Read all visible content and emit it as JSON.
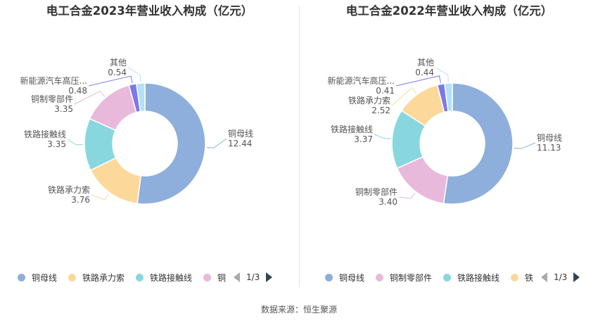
{
  "palette": {
    "铜母线": "#8eafdc",
    "铁路承力索": "#fcd99a",
    "铁路接触线": "#88d7df",
    "铜制零部件": "#e8b9da",
    "新能源汽车高压...": "#7b79e8",
    "其他": "#b3e1f7"
  },
  "chart_data": [
    {
      "type": "pie",
      "title": "电工合金2023年营业收入构成（亿元）",
      "categories": [
        "铜母线",
        "铁路承力索",
        "铁路接触线",
        "铜制零部件",
        "新能源汽车高压...",
        "其他"
      ],
      "values": [
        12.44,
        3.76,
        3.35,
        3.35,
        0.48,
        0.54
      ],
      "value_labels": [
        "12.44",
        "3.76",
        "3.35",
        "3.35",
        "0.48",
        "0.54"
      ],
      "legend": [
        "铜母线",
        "铁路承力索",
        "铁路接触线",
        "铜"
      ],
      "legend_position": "bottom",
      "pager": "1/3"
    },
    {
      "type": "pie",
      "title": "电工合金2022年营业收入构成（亿元）",
      "categories": [
        "铜母线",
        "铜制零部件",
        "铁路接触线",
        "铁路承力索",
        "新能源汽车高压...",
        "其他"
      ],
      "values": [
        11.13,
        3.4,
        3.37,
        2.52,
        0.41,
        0.44
      ],
      "value_labels": [
        "11.13",
        "3.40",
        "3.37",
        "2.52",
        "0.41",
        "0.44"
      ],
      "legend": [
        "铜母线",
        "铜制零部件",
        "铁路接触线",
        "铁"
      ],
      "legend_position": "bottom",
      "pager": "1/3"
    }
  ],
  "footer": {
    "source": "数据来源：恒生聚源"
  }
}
